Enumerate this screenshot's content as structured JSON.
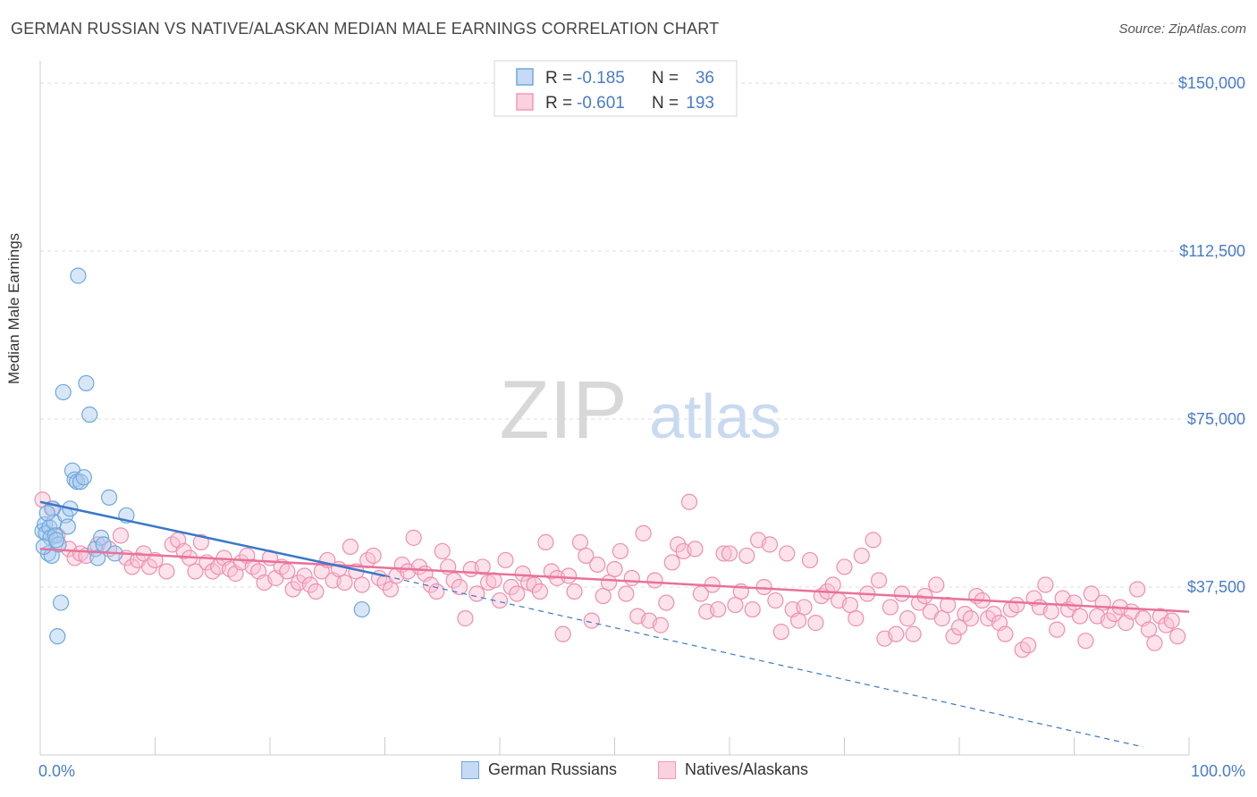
{
  "title": "GERMAN RUSSIAN VS NATIVE/ALASKAN MEDIAN MALE EARNINGS CORRELATION CHART",
  "source": "Source: ZipAtlas.com",
  "watermark": {
    "zip": "ZIP",
    "atlas": "atlas"
  },
  "legend_stats": [
    {
      "r_label": "R =",
      "r_value": "-0.185",
      "n_label": "N =",
      "n_value": "36",
      "color": "#6fa8dc"
    },
    {
      "r_label": "R =",
      "r_value": "-0.601",
      "n_label": "N =",
      "n_value": "193",
      "color": "#f39ab8"
    }
  ],
  "colors": {
    "blue": "#6fa8dc",
    "blue_line": "#3a78c8",
    "pink": "#f39ab8",
    "pink_line": "#e8729a",
    "axis_text": "#4a7cc9"
  },
  "chart_data": {
    "type": "scatter",
    "title": "GERMAN RUSSIAN VS NATIVE/ALASKAN MEDIAN MALE EARNINGS CORRELATION CHART",
    "xlabel": "",
    "ylabel": "Median Male Earnings",
    "xlim": [
      0,
      100
    ],
    "ylim": [
      0,
      155000
    ],
    "x_tick_labels": [
      "0.0%",
      "100.0%"
    ],
    "y_ticks": [
      37500,
      75000,
      112500,
      150000
    ],
    "y_tick_labels": [
      "$37,500",
      "$75,000",
      "$112,500",
      "$150,000"
    ],
    "grid": true,
    "legend_position": "top-center",
    "series": [
      {
        "name": "German Russians",
        "color": "#6fa8dc",
        "r": -0.185,
        "n": 36,
        "trend": {
          "x0": 0,
          "y0": 56500,
          "x1": 30,
          "y1": 40000,
          "dashed_x1": 96,
          "dashed_y1": 1800
        },
        "points": [
          [
            0.2,
            50000
          ],
          [
            0.4,
            51500
          ],
          [
            0.5,
            49500
          ],
          [
            0.7,
            45000
          ],
          [
            0.8,
            50800
          ],
          [
            0.9,
            48500
          ],
          [
            1.0,
            44500
          ],
          [
            1.1,
            55000
          ],
          [
            1.2,
            52000
          ],
          [
            1.3,
            49000
          ],
          [
            1.5,
            26500
          ],
          [
            1.6,
            47000
          ],
          [
            1.8,
            34000
          ],
          [
            2.0,
            81000
          ],
          [
            2.2,
            53500
          ],
          [
            2.4,
            51000
          ],
          [
            2.6,
            55000
          ],
          [
            2.8,
            63500
          ],
          [
            3.0,
            61500
          ],
          [
            3.2,
            61000
          ],
          [
            3.3,
            107000
          ],
          [
            3.5,
            61000
          ],
          [
            3.8,
            62000
          ],
          [
            4.0,
            83000
          ],
          [
            4.3,
            76000
          ],
          [
            4.8,
            46000
          ],
          [
            5.0,
            44000
          ],
          [
            5.3,
            48500
          ],
          [
            5.5,
            47000
          ],
          [
            6.0,
            57500
          ],
          [
            6.5,
            45000
          ],
          [
            7.5,
            53500
          ],
          [
            0.3,
            46500
          ],
          [
            0.6,
            54000
          ],
          [
            1.4,
            48000
          ],
          [
            28,
            32500
          ]
        ]
      },
      {
        "name": "Natives/Alaskans",
        "color": "#f39ab8",
        "r": -0.601,
        "n": 193,
        "trend": {
          "x0": 0,
          "y0": 46000,
          "x1": 100,
          "y1": 32000
        },
        "points": [
          [
            0.2,
            57000
          ],
          [
            1,
            55000
          ],
          [
            1.5,
            49000
          ],
          [
            2.5,
            46000
          ],
          [
            3,
            44000
          ],
          [
            3.5,
            45000
          ],
          [
            4,
            44500
          ],
          [
            5,
            47000
          ],
          [
            6,
            46000
          ],
          [
            7,
            49000
          ],
          [
            7.5,
            44000
          ],
          [
            8,
            42000
          ],
          [
            8.5,
            43500
          ],
          [
            9,
            45000
          ],
          [
            9.5,
            42000
          ],
          [
            10,
            43500
          ],
          [
            11,
            41000
          ],
          [
            11.5,
            47000
          ],
          [
            12,
            48000
          ],
          [
            12.5,
            45500
          ],
          [
            13,
            44000
          ],
          [
            13.5,
            41000
          ],
          [
            14,
            47500
          ],
          [
            14.5,
            43000
          ],
          [
            15,
            41000
          ],
          [
            15.5,
            42000
          ],
          [
            16,
            44000
          ],
          [
            16.5,
            41500
          ],
          [
            17,
            40500
          ],
          [
            17.5,
            43000
          ],
          [
            18,
            44500
          ],
          [
            18.5,
            42000
          ],
          [
            19,
            41000
          ],
          [
            19.5,
            38500
          ],
          [
            20,
            44000
          ],
          [
            20.5,
            39500
          ],
          [
            21,
            42000
          ],
          [
            21.5,
            41000
          ],
          [
            22,
            37000
          ],
          [
            22.5,
            38500
          ],
          [
            23,
            40000
          ],
          [
            23.5,
            38000
          ],
          [
            24,
            36500
          ],
          [
            24.5,
            41000
          ],
          [
            25,
            43500
          ],
          [
            25.5,
            39000
          ],
          [
            26,
            41500
          ],
          [
            26.5,
            38500
          ],
          [
            27,
            46500
          ],
          [
            27.5,
            41000
          ],
          [
            28,
            38000
          ],
          [
            28.5,
            43500
          ],
          [
            29,
            44500
          ],
          [
            29.5,
            39500
          ],
          [
            30,
            38500
          ],
          [
            30.5,
            37000
          ],
          [
            31,
            40000
          ],
          [
            31.5,
            42500
          ],
          [
            32,
            41000
          ],
          [
            32.5,
            48500
          ],
          [
            33,
            42000
          ],
          [
            33.5,
            40500
          ],
          [
            34,
            38000
          ],
          [
            34.5,
            36500
          ],
          [
            35,
            45500
          ],
          [
            35.5,
            42000
          ],
          [
            36,
            39000
          ],
          [
            36.5,
            37500
          ],
          [
            37,
            30500
          ],
          [
            37.5,
            41500
          ],
          [
            38,
            36000
          ],
          [
            38.5,
            42000
          ],
          [
            39,
            38500
          ],
          [
            39.5,
            39000
          ],
          [
            40,
            34500
          ],
          [
            40.5,
            43500
          ],
          [
            41,
            37500
          ],
          [
            41.5,
            36000
          ],
          [
            42,
            40500
          ],
          [
            42.5,
            38500
          ],
          [
            43,
            38000
          ],
          [
            43.5,
            36500
          ],
          [
            44,
            47500
          ],
          [
            44.5,
            41000
          ],
          [
            45,
            39500
          ],
          [
            45.5,
            27000
          ],
          [
            46,
            40000
          ],
          [
            46.5,
            36500
          ],
          [
            47,
            47500
          ],
          [
            47.5,
            44500
          ],
          [
            48,
            30000
          ],
          [
            48.5,
            42500
          ],
          [
            49,
            35500
          ],
          [
            49.5,
            38500
          ],
          [
            50,
            41500
          ],
          [
            50.5,
            45500
          ],
          [
            51,
            36000
          ],
          [
            51.5,
            39500
          ],
          [
            52,
            31000
          ],
          [
            52.5,
            49500
          ],
          [
            53,
            30000
          ],
          [
            53.5,
            39000
          ],
          [
            54,
            29000
          ],
          [
            54.5,
            34000
          ],
          [
            55,
            43000
          ],
          [
            55.5,
            47000
          ],
          [
            56,
            45500
          ],
          [
            56.5,
            56500
          ],
          [
            57,
            46000
          ],
          [
            57.5,
            36000
          ],
          [
            58,
            32000
          ],
          [
            58.5,
            38000
          ],
          [
            59,
            32500
          ],
          [
            59.5,
            45000
          ],
          [
            60,
            45000
          ],
          [
            60.5,
            33500
          ],
          [
            61,
            36500
          ],
          [
            61.5,
            44500
          ],
          [
            62,
            32500
          ],
          [
            62.5,
            48000
          ],
          [
            63,
            37500
          ],
          [
            63.5,
            47000
          ],
          [
            64,
            34500
          ],
          [
            64.5,
            27500
          ],
          [
            65,
            45000
          ],
          [
            65.5,
            32500
          ],
          [
            66,
            30000
          ],
          [
            66.5,
            33000
          ],
          [
            67,
            43500
          ],
          [
            67.5,
            29500
          ],
          [
            68,
            35500
          ],
          [
            68.5,
            36500
          ],
          [
            69,
            38000
          ],
          [
            69.5,
            34500
          ],
          [
            70,
            42000
          ],
          [
            70.5,
            33500
          ],
          [
            71,
            30500
          ],
          [
            71.5,
            44500
          ],
          [
            72,
            36000
          ],
          [
            72.5,
            48000
          ],
          [
            73,
            39000
          ],
          [
            73.5,
            26000
          ],
          [
            74,
            33000
          ],
          [
            74.5,
            27000
          ],
          [
            75,
            36000
          ],
          [
            75.5,
            30500
          ],
          [
            76,
            27000
          ],
          [
            76.5,
            34000
          ],
          [
            77,
            35500
          ],
          [
            77.5,
            32000
          ],
          [
            78,
            38000
          ],
          [
            78.5,
            30500
          ],
          [
            79,
            33500
          ],
          [
            79.5,
            26500
          ],
          [
            80,
            28500
          ],
          [
            80.5,
            31500
          ],
          [
            81,
            30500
          ],
          [
            81.5,
            35500
          ],
          [
            82,
            34500
          ],
          [
            82.5,
            30500
          ],
          [
            83,
            31500
          ],
          [
            83.5,
            29500
          ],
          [
            84,
            27000
          ],
          [
            84.5,
            32500
          ],
          [
            85,
            33500
          ],
          [
            85.5,
            23500
          ],
          [
            86,
            24500
          ],
          [
            86.5,
            35000
          ],
          [
            87,
            33000
          ],
          [
            87.5,
            38000
          ],
          [
            88,
            32000
          ],
          [
            88.5,
            28000
          ],
          [
            89,
            35000
          ],
          [
            89.5,
            32500
          ],
          [
            90,
            34000
          ],
          [
            90.5,
            31000
          ],
          [
            91,
            25500
          ],
          [
            91.5,
            36000
          ],
          [
            92,
            31000
          ],
          [
            92.5,
            34000
          ],
          [
            93,
            30000
          ],
          [
            93.5,
            31500
          ],
          [
            94,
            33000
          ],
          [
            94.5,
            29500
          ],
          [
            95,
            32000
          ],
          [
            95.5,
            37000
          ],
          [
            96,
            30500
          ],
          [
            96.5,
            28000
          ],
          [
            97,
            25000
          ],
          [
            97.5,
            31000
          ],
          [
            98,
            29000
          ],
          [
            98.5,
            30000
          ],
          [
            99,
            26500
          ]
        ]
      }
    ]
  },
  "legend_bottom": [
    {
      "label": "German Russians",
      "color": "#6fa8dc"
    },
    {
      "label": "Natives/Alaskans",
      "color": "#f39ab8"
    }
  ]
}
